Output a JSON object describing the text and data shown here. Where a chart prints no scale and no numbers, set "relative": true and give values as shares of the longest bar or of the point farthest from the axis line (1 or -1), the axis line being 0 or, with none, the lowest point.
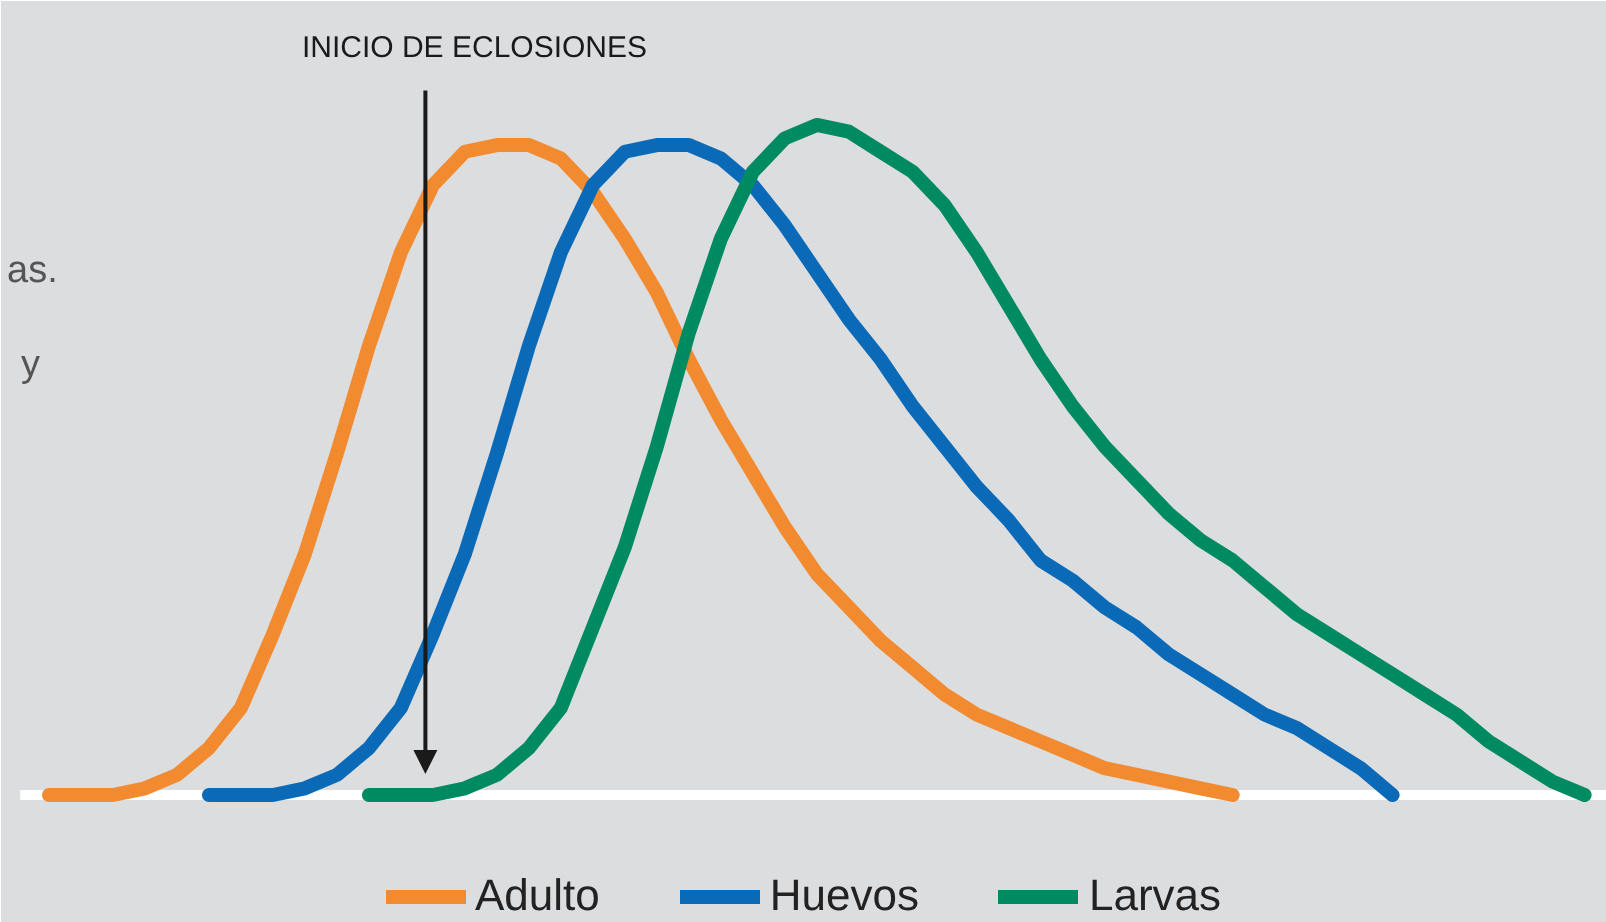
{
  "chart_data": {
    "type": "line",
    "relative": true,
    "legend": "bottom",
    "grid": false,
    "marker": "none",
    "line_style": "solid",
    "categories": [
      null,
      null,
      null,
      null,
      null,
      null,
      null,
      null,
      null,
      null,
      null,
      null,
      null,
      null,
      null,
      null,
      null,
      null,
      null,
      null,
      null,
      null,
      null,
      null,
      null,
      null,
      null,
      null,
      null,
      null,
      null,
      null,
      null,
      null,
      null,
      null,
      null,
      null,
      null,
      null,
      null,
      null,
      null,
      null,
      null,
      null,
      null,
      null,
      null
    ],
    "series": [
      {
        "name": "Adulto",
        "color": "#f28a30",
        "values": [
          0,
          0,
          0,
          0.01,
          0.03,
          0.07,
          0.13,
          0.24,
          0.36,
          0.51,
          0.67,
          0.81,
          0.91,
          0.96,
          0.97,
          0.97,
          0.95,
          0.9,
          0.83,
          0.75,
          0.65,
          0.56,
          0.48,
          0.4,
          0.33,
          0.28,
          0.23,
          0.19,
          0.15,
          0.12,
          0.1,
          0.08,
          0.06,
          0.04,
          0.03,
          0.02,
          0.01,
          0,
          null,
          null,
          null,
          null,
          null,
          null,
          null,
          null,
          null,
          null,
          null
        ]
      },
      {
        "name": "Huevos",
        "color": "#0a6ab8",
        "values": [
          null,
          null,
          null,
          null,
          null,
          0,
          0,
          0,
          0.01,
          0.03,
          0.07,
          0.13,
          0.24,
          0.36,
          0.51,
          0.67,
          0.81,
          0.91,
          0.96,
          0.97,
          0.97,
          0.95,
          0.91,
          0.85,
          0.78,
          0.71,
          0.65,
          0.58,
          0.52,
          0.46,
          0.41,
          0.35,
          0.32,
          0.28,
          0.25,
          0.21,
          0.18,
          0.15,
          0.12,
          0.1,
          0.07,
          0.04,
          0,
          null,
          null,
          null,
          null,
          null,
          null
        ]
      },
      {
        "name": "Larvas",
        "color": "#008a62",
        "values": [
          null,
          null,
          null,
          null,
          null,
          null,
          null,
          null,
          null,
          null,
          0,
          0,
          0,
          0.01,
          0.03,
          0.07,
          0.13,
          0.25,
          0.37,
          0.52,
          0.69,
          0.83,
          0.93,
          0.98,
          1.0,
          0.99,
          0.96,
          0.93,
          0.88,
          0.81,
          0.73,
          0.65,
          0.58,
          0.52,
          0.47,
          0.42,
          0.38,
          0.35,
          0.31,
          0.27,
          0.24,
          0.21,
          0.18,
          0.15,
          0.12,
          0.08,
          0.05,
          0.02,
          0
        ]
      }
    ],
    "annotations": [
      "INICIO DE ECLOSIONES",
      "as.",
      "y"
    ]
  }
}
